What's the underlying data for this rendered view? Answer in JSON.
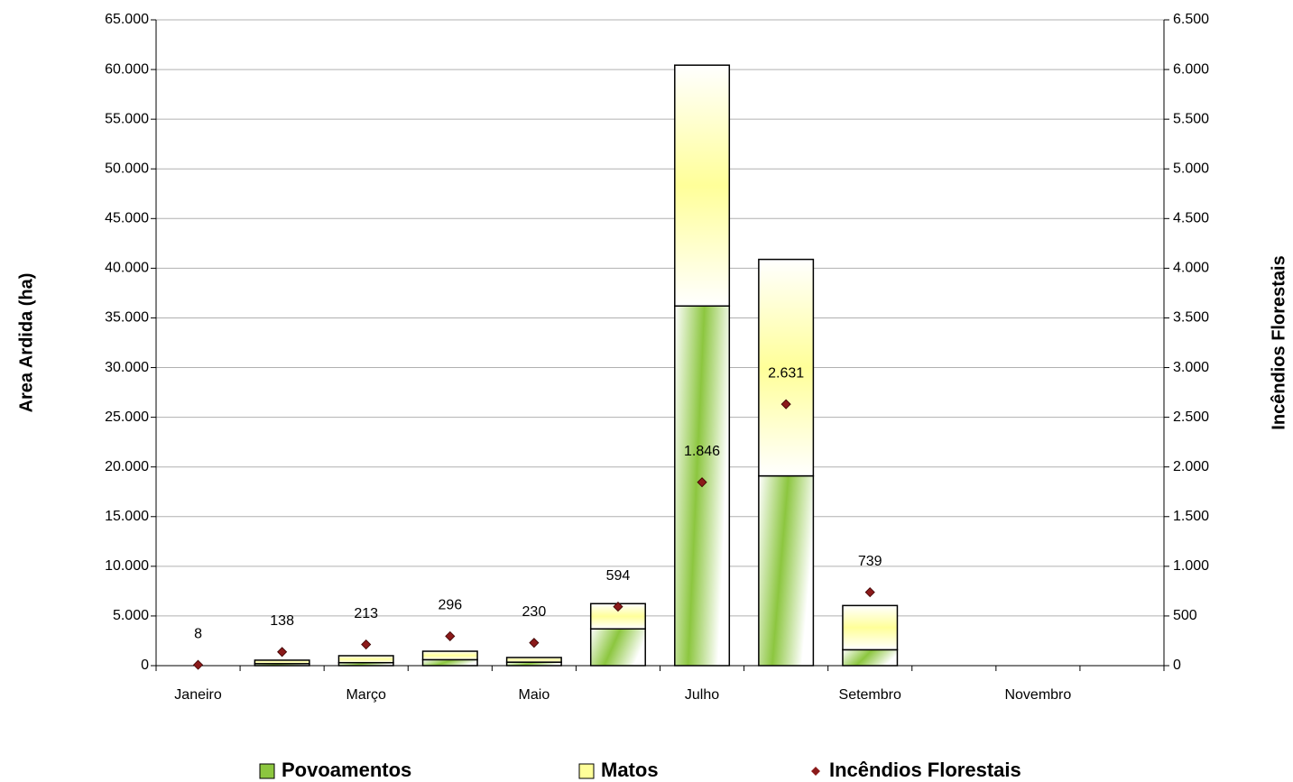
{
  "chart_data": {
    "type": "bar",
    "categories": [
      "Janeiro",
      null,
      "Março",
      null,
      "Maio",
      null,
      "Julho",
      null,
      "Setembro",
      null,
      "Novembro",
      null
    ],
    "y_label": "Area Ardida (ha)",
    "y2_label": "Incêndios Florestais",
    "series": [
      {
        "name": "Povoamentos",
        "color": "#8cc63f",
        "values": [
          0,
          200,
          300,
          600,
          350,
          3700,
          36200,
          19100,
          1600,
          0,
          0,
          0
        ]
      },
      {
        "name": "Matos",
        "color": "#ffff99",
        "values": [
          0,
          350,
          700,
          850,
          470,
          2540,
          24240,
          21790,
          4450,
          0,
          0,
          0
        ]
      },
      {
        "name": "Incêndios Florestais",
        "type": "scatter",
        "axis": "y2",
        "color": "#8b1a1a",
        "values": [
          8,
          138,
          213,
          296,
          230,
          594,
          1846,
          2631,
          739,
          null,
          null,
          null
        ],
        "value_labels": [
          "8",
          "138",
          "213",
          "296",
          "230",
          "594",
          "1.846",
          "2.631",
          "739",
          null,
          null,
          null
        ]
      }
    ],
    "ylim": [
      0,
      65000
    ],
    "yticks": [
      0,
      {
        "value": 5000,
        "label": "5.000"
      },
      {
        "value": 10000,
        "label": "10.000"
      },
      {
        "value": 15000,
        "label": "15.000"
      },
      {
        "value": 20000,
        "label": "20.000"
      },
      {
        "value": 25000,
        "label": "25.000"
      },
      {
        "value": 30000,
        "label": "30.000"
      },
      {
        "value": 35000,
        "label": "35.000"
      },
      {
        "value": 40000,
        "label": "40.000"
      },
      {
        "value": 45000,
        "label": "45.000"
      },
      {
        "value": 50000,
        "label": "50.000"
      },
      {
        "value": 55000,
        "label": "55.000"
      },
      {
        "value": 60000,
        "label": "60.000"
      },
      {
        "value": 65000,
        "label": "65.000"
      }
    ],
    "y2lim": [
      0,
      6500
    ],
    "y2ticks": [
      0,
      500,
      {
        "value": 1000,
        "label": "1.000"
      },
      {
        "value": 1500,
        "label": "1.500"
      },
      {
        "value": 2000,
        "label": "2.000"
      },
      {
        "value": 2500,
        "label": "2.500"
      },
      {
        "value": 3000,
        "label": "3.000"
      },
      {
        "value": 3500,
        "label": "3.500"
      },
      {
        "value": 4000,
        "label": "4.000"
      },
      {
        "value": 4500,
        "label": "4.500"
      },
      {
        "value": 5000,
        "label": "5.000"
      },
      {
        "value": 5500,
        "label": "5.500"
      },
      {
        "value": 6000,
        "label": "6.000"
      },
      {
        "value": 6500,
        "label": "6.500"
      }
    ],
    "grid": true,
    "legend": "bottom"
  }
}
